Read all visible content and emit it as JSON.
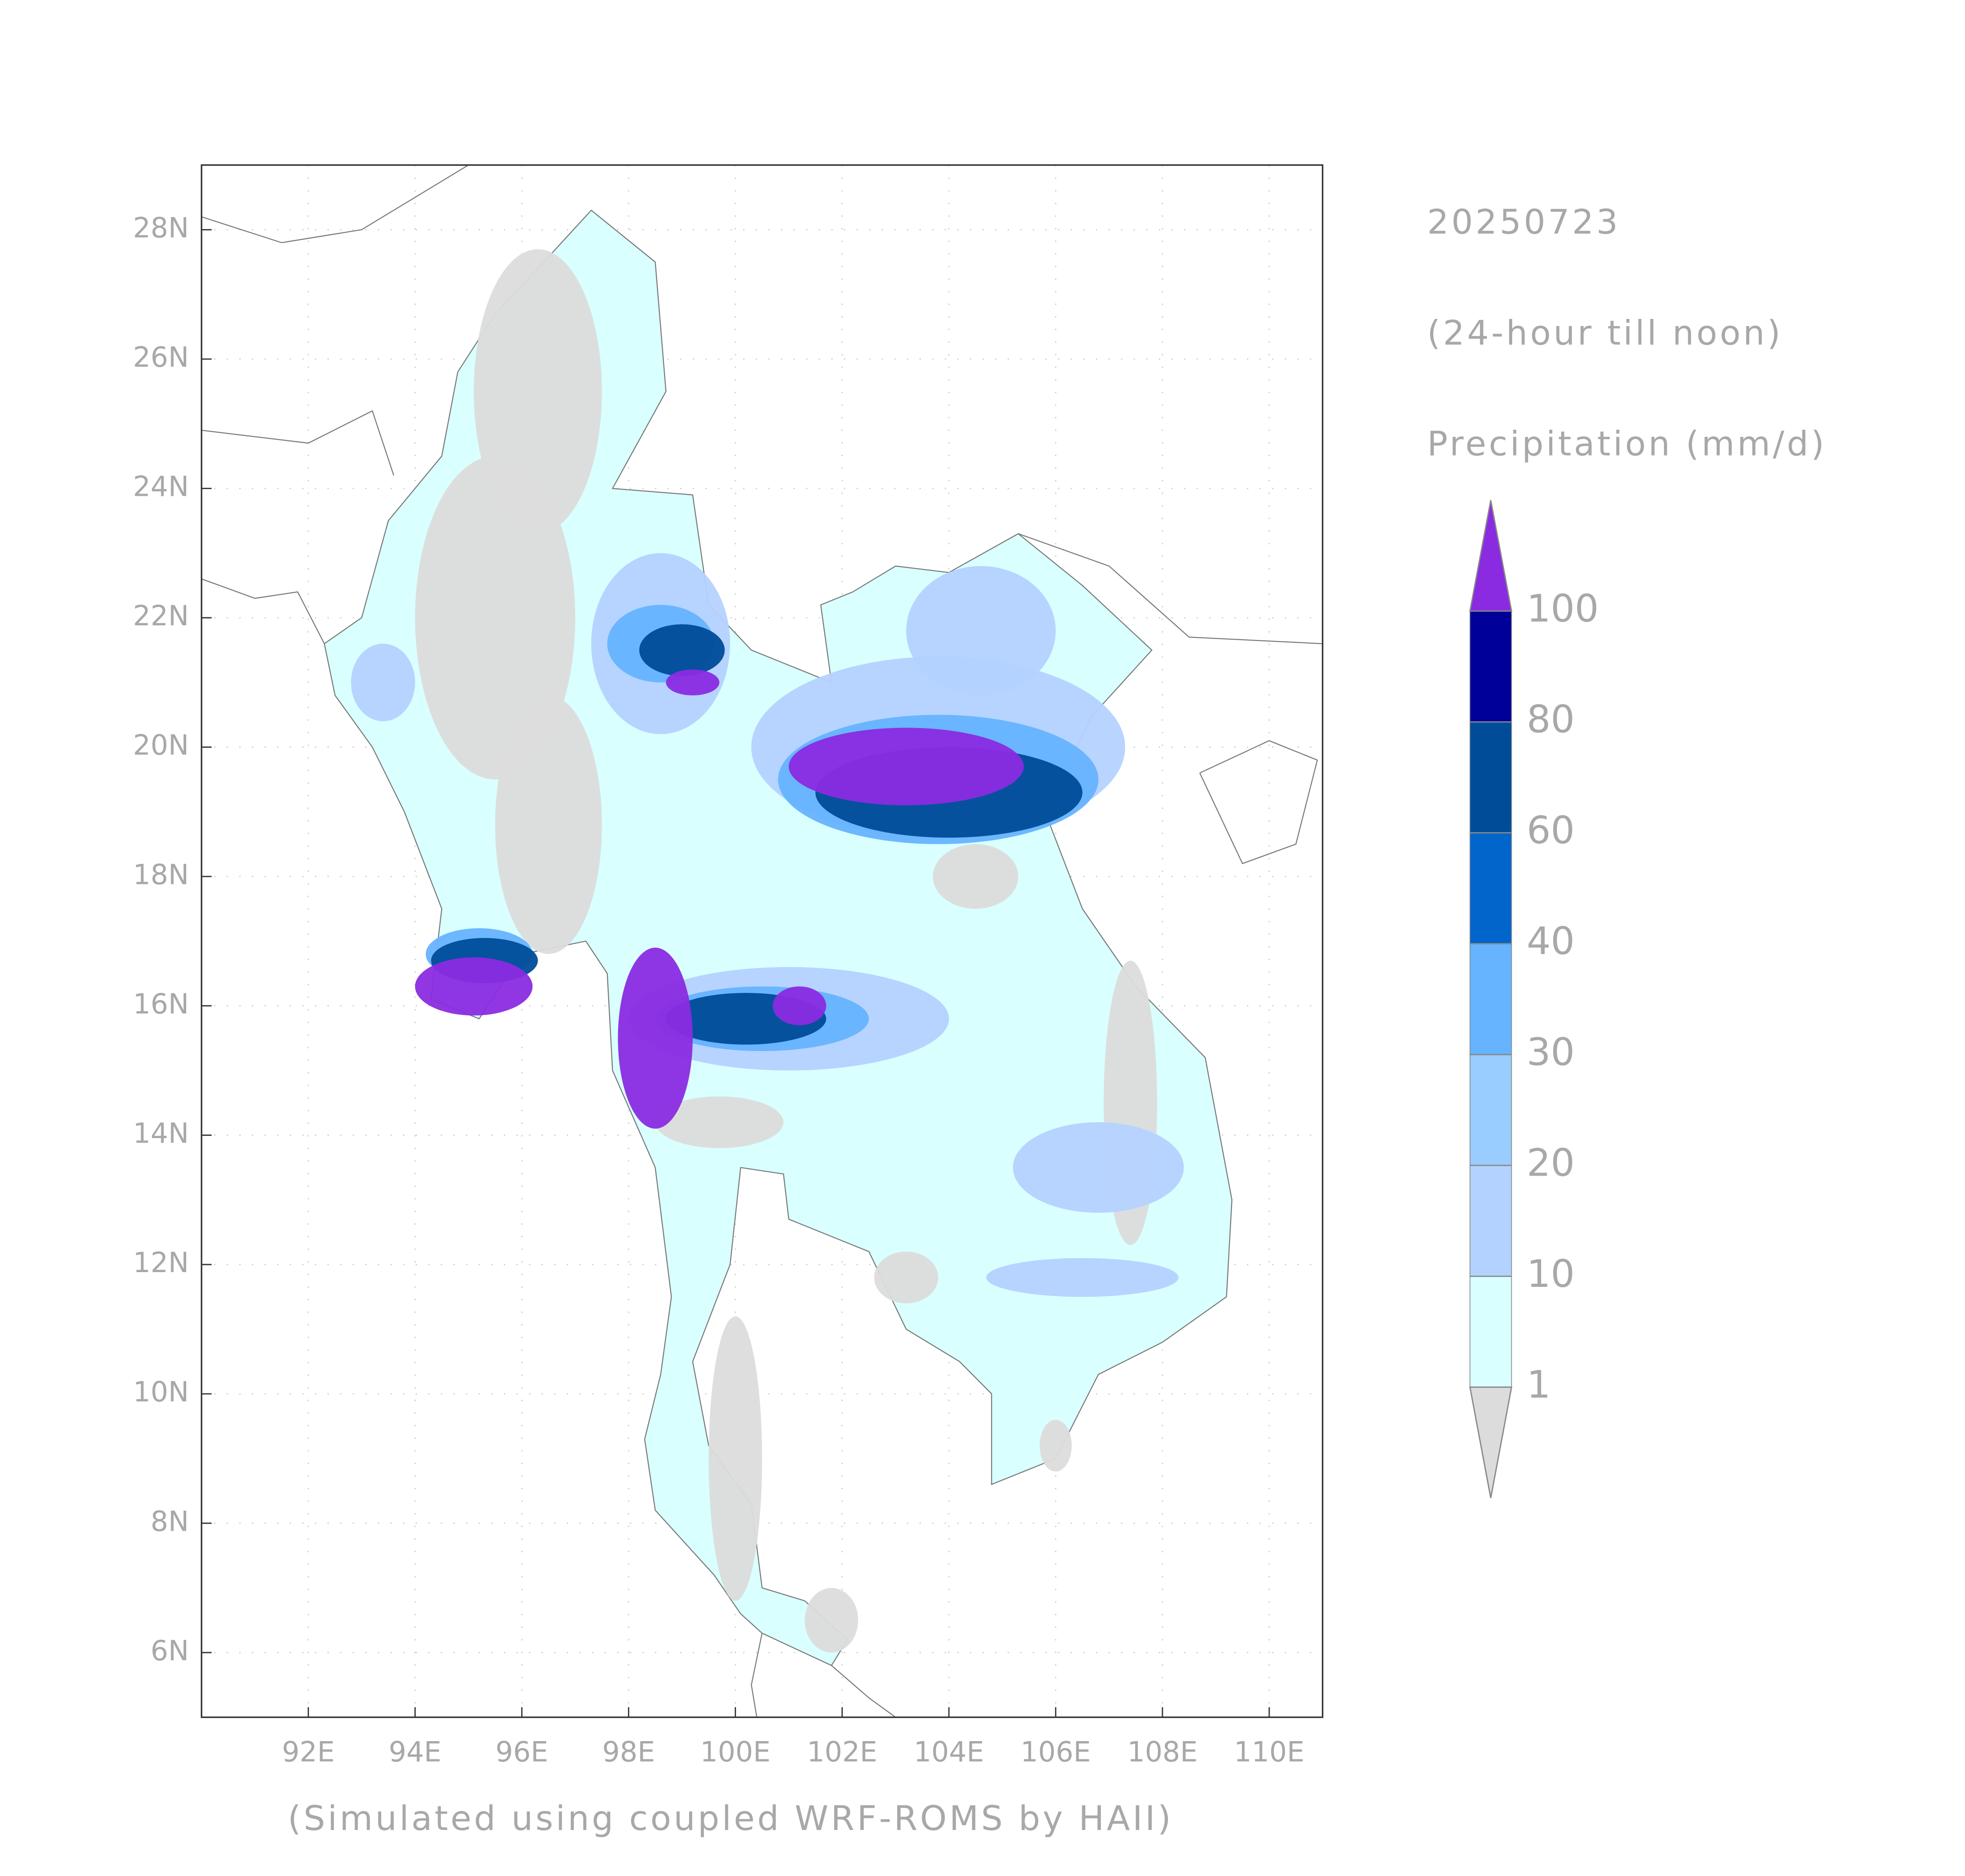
{
  "chart_data": {
    "type": "map",
    "date": "20250723",
    "subtitle": "(24-hour till noon)",
    "variable": "Precipitation (mm/d)",
    "footer": "(Simulated using coupled WRF-ROMS by HAII)",
    "xlim": [
      90,
      111
    ],
    "ylim": [
      5,
      29
    ],
    "xticks": [
      {
        "value": 92,
        "label": "92E"
      },
      {
        "value": 94,
        "label": "94E"
      },
      {
        "value": 96,
        "label": "96E"
      },
      {
        "value": 98,
        "label": "98E"
      },
      {
        "value": 100,
        "label": "100E"
      },
      {
        "value": 102,
        "label": "102E"
      },
      {
        "value": 104,
        "label": "104E"
      },
      {
        "value": 106,
        "label": "106E"
      },
      {
        "value": 108,
        "label": "108E"
      },
      {
        "value": 110,
        "label": "110E"
      }
    ],
    "yticks": [
      {
        "value": 6,
        "label": "6N"
      },
      {
        "value": 8,
        "label": "8N"
      },
      {
        "value": 10,
        "label": "10N"
      },
      {
        "value": 12,
        "label": "12N"
      },
      {
        "value": 14,
        "label": "14N"
      },
      {
        "value": 16,
        "label": "16N"
      },
      {
        "value": 18,
        "label": "18N"
      },
      {
        "value": 20,
        "label": "20N"
      },
      {
        "value": 22,
        "label": "22N"
      },
      {
        "value": 24,
        "label": "24N"
      },
      {
        "value": 26,
        "label": "26N"
      },
      {
        "value": 28,
        "label": "28N"
      }
    ],
    "levels": [
      1,
      10,
      20,
      30,
      40,
      60,
      80,
      100
    ],
    "colors": [
      "#dcdcdc",
      "#d9ffff",
      "#b4d2ff",
      "#99ccff",
      "#66b3ff",
      "#0066cc",
      "#004c99",
      "#000099",
      "#8a2be2"
    ],
    "grid": true
  }
}
